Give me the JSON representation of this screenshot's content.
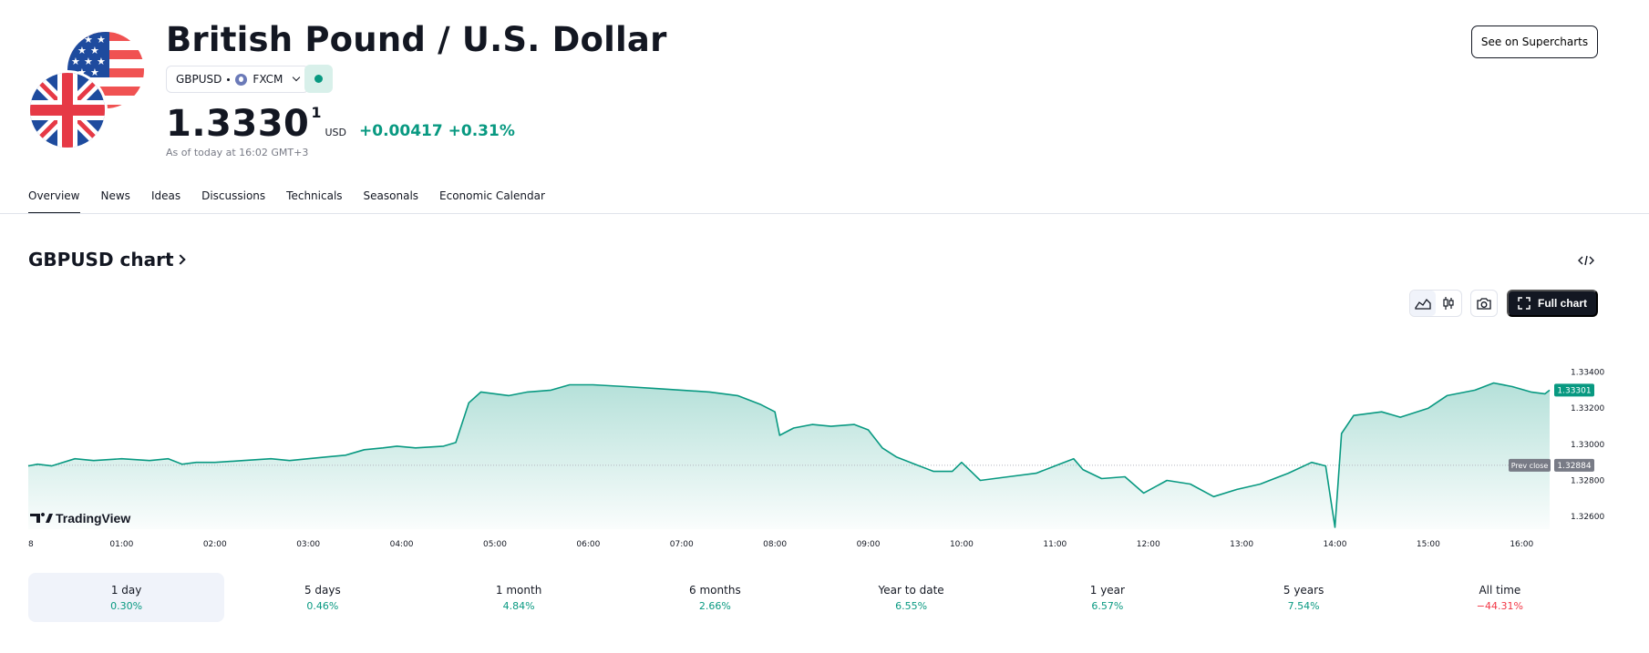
{
  "header": {
    "title": "British Pound / U.S. Dollar",
    "symbol": "GBPUSD",
    "exchange": "FXCM",
    "market_status_color": "#089981"
  },
  "quote": {
    "price": "1.3330",
    "price_last_digit": "1",
    "currency": "USD",
    "change": "+0.00417",
    "change_pct": "+0.31%",
    "as_of": "As of today at 16:02 GMT+3",
    "up_color": "#089981"
  },
  "actions": {
    "supercharts_label": "See on Supercharts",
    "full_chart_label": "Full chart"
  },
  "tabs": [
    {
      "label": "Overview",
      "active": true
    },
    {
      "label": "News"
    },
    {
      "label": "Ideas"
    },
    {
      "label": "Discussions"
    },
    {
      "label": "Technicals"
    },
    {
      "label": "Seasonals"
    },
    {
      "label": "Economic Calendar"
    }
  ],
  "chart_section": {
    "title": "GBPUSD chart"
  },
  "chart_data": {
    "type": "area",
    "watermark": "TradingView",
    "x_ticks": [
      "8",
      "01:00",
      "02:00",
      "03:00",
      "04:00",
      "05:00",
      "06:00",
      "07:00",
      "08:00",
      "09:00",
      "10:00",
      "11:00",
      "12:00",
      "13:00",
      "14:00",
      "15:00",
      "16:00"
    ],
    "y_ticks": [
      "1.33400",
      "1.33200",
      "1.33000",
      "1.32800",
      "1.32600"
    ],
    "ylim": [
      1.3253,
      1.3361
    ],
    "prev_close": 1.32884,
    "prev_close_label": "Prev close",
    "prev_close_text": "1.32884",
    "last_price_text": "1.33301",
    "line_color": "#089981",
    "series": [
      {
        "values": [
          [
            0.0,
            1.3288
          ],
          [
            0.1,
            1.3289
          ],
          [
            0.25,
            1.3288
          ],
          [
            0.5,
            1.3292
          ],
          [
            0.7,
            1.3291
          ],
          [
            1.0,
            1.3292
          ],
          [
            1.3,
            1.3291
          ],
          [
            1.5,
            1.3292
          ],
          [
            1.65,
            1.3289
          ],
          [
            1.8,
            1.329
          ],
          [
            2.0,
            1.329
          ],
          [
            2.3,
            1.3291
          ],
          [
            2.6,
            1.3292
          ],
          [
            2.8,
            1.3291
          ],
          [
            3.0,
            1.3292
          ],
          [
            3.2,
            1.3293
          ],
          [
            3.4,
            1.3294
          ],
          [
            3.6,
            1.3297
          ],
          [
            3.8,
            1.3298
          ],
          [
            3.95,
            1.3299
          ],
          [
            4.15,
            1.3298
          ],
          [
            4.45,
            1.3299
          ],
          [
            4.58,
            1.3301
          ],
          [
            4.72,
            1.3323
          ],
          [
            4.85,
            1.3329
          ],
          [
            5.0,
            1.3328
          ],
          [
            5.15,
            1.3327
          ],
          [
            5.35,
            1.3329
          ],
          [
            5.6,
            1.333
          ],
          [
            5.8,
            1.3333
          ],
          [
            6.05,
            1.3333
          ],
          [
            6.4,
            1.3332
          ],
          [
            6.7,
            1.3331
          ],
          [
            7.0,
            1.333
          ],
          [
            7.3,
            1.3329
          ],
          [
            7.6,
            1.3327
          ],
          [
            7.85,
            1.3322
          ],
          [
            8.0,
            1.3318
          ],
          [
            8.05,
            1.3305
          ],
          [
            8.2,
            1.3309
          ],
          [
            8.4,
            1.3311
          ],
          [
            8.6,
            1.331
          ],
          [
            8.85,
            1.3311
          ],
          [
            9.0,
            1.3308
          ],
          [
            9.15,
            1.3298
          ],
          [
            9.3,
            1.3293
          ],
          [
            9.5,
            1.3289
          ],
          [
            9.7,
            1.3285
          ],
          [
            9.9,
            1.3285
          ],
          [
            10.0,
            1.329
          ],
          [
            10.1,
            1.3285
          ],
          [
            10.2,
            1.328
          ],
          [
            10.5,
            1.3282
          ],
          [
            10.8,
            1.3284
          ],
          [
            11.0,
            1.3288
          ],
          [
            11.2,
            1.3292
          ],
          [
            11.3,
            1.3286
          ],
          [
            11.5,
            1.3281
          ],
          [
            11.75,
            1.3282
          ],
          [
            11.95,
            1.3273
          ],
          [
            12.2,
            1.328
          ],
          [
            12.45,
            1.3278
          ],
          [
            12.7,
            1.3271
          ],
          [
            12.95,
            1.3275
          ],
          [
            13.2,
            1.3278
          ],
          [
            13.5,
            1.3284
          ],
          [
            13.75,
            1.329
          ],
          [
            13.9,
            1.3288
          ],
          [
            14.0,
            1.3254
          ],
          [
            14.07,
            1.3306
          ],
          [
            14.2,
            1.3316
          ],
          [
            14.5,
            1.3318
          ],
          [
            14.7,
            1.3315
          ],
          [
            15.0,
            1.332
          ],
          [
            15.2,
            1.3327
          ],
          [
            15.5,
            1.333
          ],
          [
            15.7,
            1.3334
          ],
          [
            15.9,
            1.3332
          ],
          [
            16.1,
            1.3329
          ],
          [
            16.25,
            1.3328
          ],
          [
            16.3,
            1.333
          ]
        ]
      }
    ]
  },
  "periods": [
    {
      "label": "1 day",
      "value": "0.30%",
      "color": "#089981",
      "active": true
    },
    {
      "label": "5 days",
      "value": "0.46%",
      "color": "#089981"
    },
    {
      "label": "1 month",
      "value": "4.84%",
      "color": "#089981"
    },
    {
      "label": "6 months",
      "value": "2.66%",
      "color": "#089981"
    },
    {
      "label": "Year to date",
      "value": "6.55%",
      "color": "#089981"
    },
    {
      "label": "1 year",
      "value": "6.57%",
      "color": "#089981"
    },
    {
      "label": "5 years",
      "value": "7.54%",
      "color": "#089981"
    },
    {
      "label": "All time",
      "value": "−44.31%",
      "color": "#f23645"
    }
  ]
}
